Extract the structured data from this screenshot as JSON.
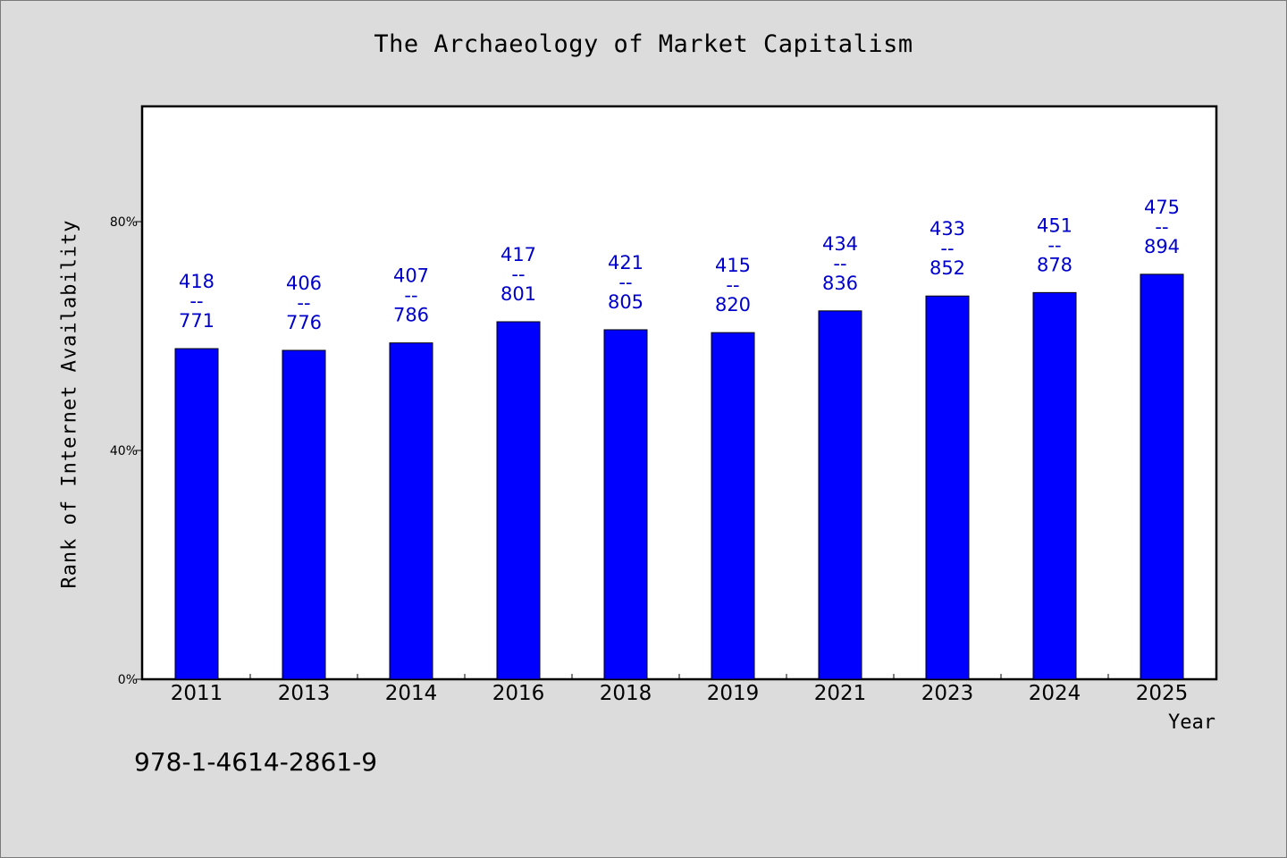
{
  "chart_data": {
    "type": "bar",
    "title": "The Archaeology of Market Capitalism",
    "xlabel": "Year",
    "ylabel": "Rank of Internet Availability",
    "categories": [
      "2011",
      "2013",
      "2014",
      "2016",
      "2018",
      "2019",
      "2021",
      "2023",
      "2024",
      "2025"
    ],
    "series": [
      {
        "values": [
          57.8,
          57.5,
          58.8,
          62.5,
          61.1,
          60.6,
          64.4,
          67.0,
          67.6,
          70.8
        ],
        "numerators": [
          418,
          406,
          407,
          417,
          421,
          415,
          434,
          433,
          451,
          475
        ],
        "denominators": [
          771,
          776,
          786,
          801,
          805,
          820,
          836,
          852,
          878,
          894
        ]
      }
    ],
    "ylim": [
      0,
      100
    ],
    "yticks": [
      0,
      40,
      80
    ],
    "ytick_labels": [
      "0%",
      "40%",
      "80%"
    ],
    "label_separator": "--",
    "grid": false,
    "colors": {
      "bar": "#0000ff",
      "label": "#0000cc",
      "plot_bg": "#ffffff",
      "page_bg": "#dcdcdc"
    }
  },
  "footer": {
    "isbn": "978-1-4614-2861-9"
  }
}
